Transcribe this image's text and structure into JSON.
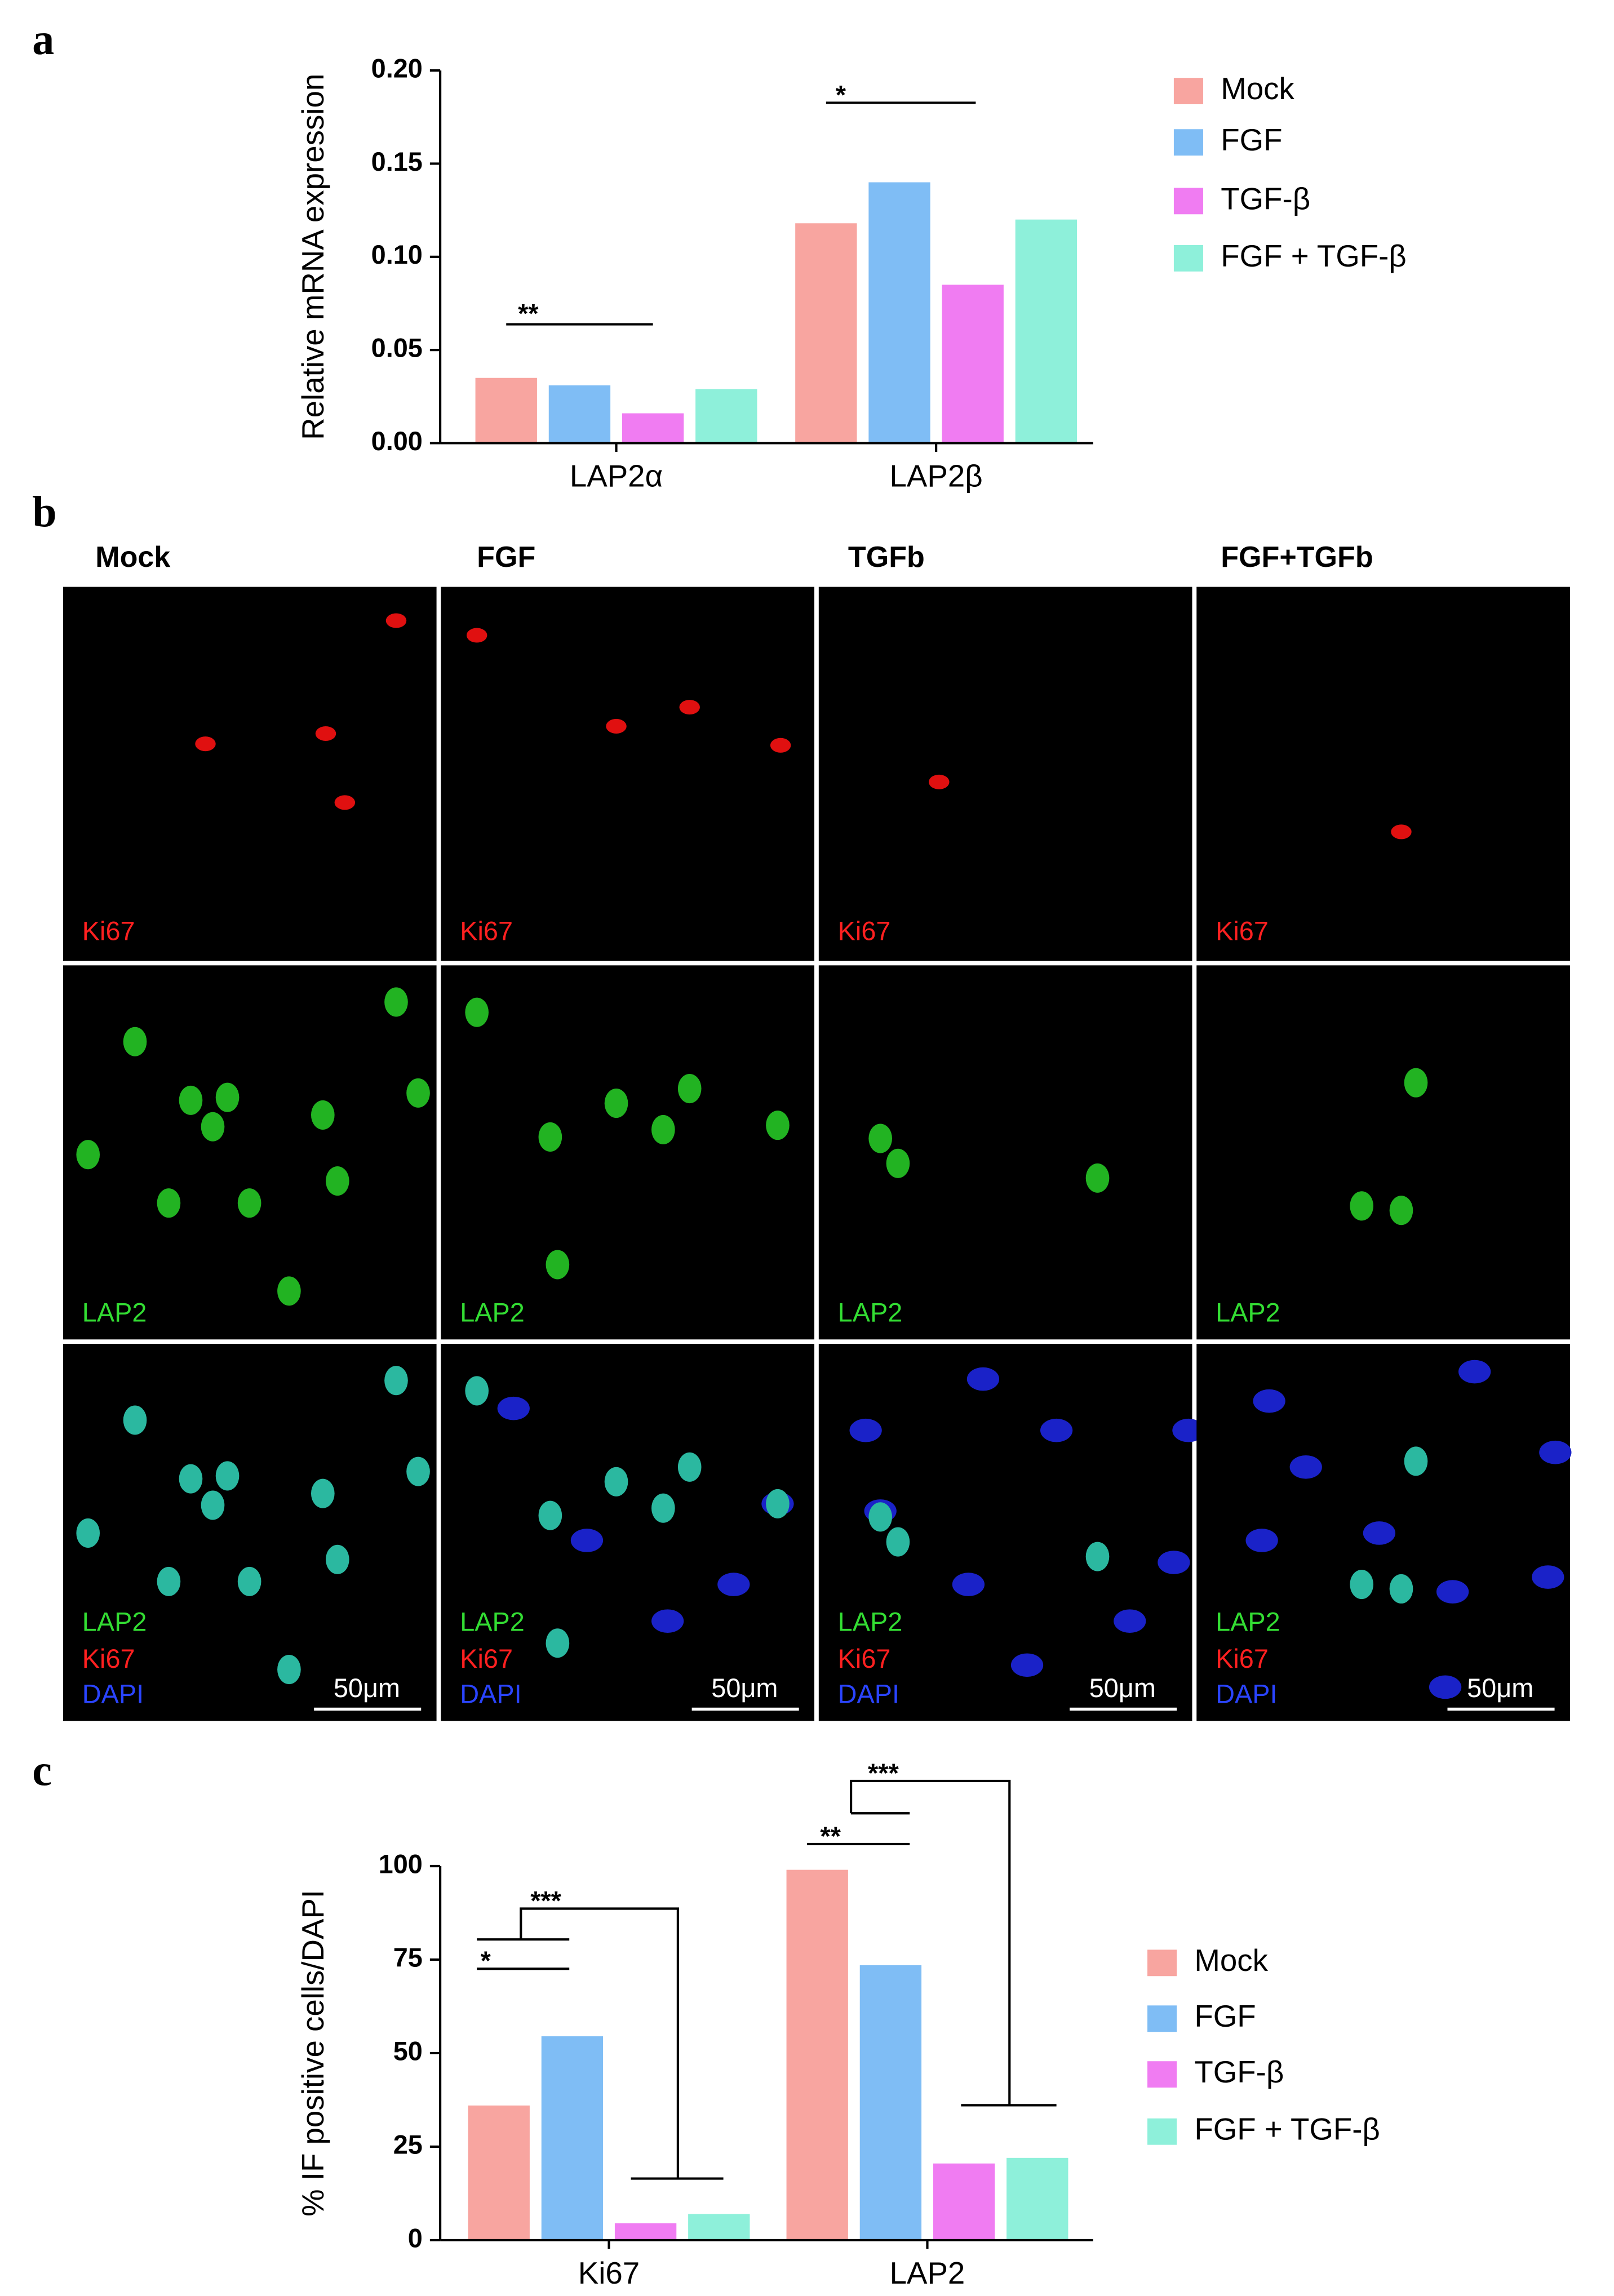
{
  "chart_data": [
    {
      "type": "bar",
      "ylabel": "Relative mRNA expression",
      "categories": [
        "LAP2α",
        "LAP2β"
      ],
      "series": [
        {
          "name": "Mock",
          "color": "#f8a5a0",
          "values": [
            0.035,
            0.118
          ]
        },
        {
          "name": "FGF",
          "color": "#7fbdf5",
          "values": [
            0.031,
            0.14
          ]
        },
        {
          "name": "TGF-β",
          "color": "#f07cf2",
          "values": [
            0.016,
            0.085
          ]
        },
        {
          "name": "FGF + TGF-β",
          "color": "#8ef0da",
          "values": [
            0.029,
            0.12
          ]
        }
      ],
      "ylim": [
        0,
        0.2
      ],
      "yticks": [
        {
          "value": 0,
          "label": "0.00"
        },
        {
          "value": 0.05,
          "label": "0.05"
        },
        {
          "value": 0.1,
          "label": "0.10"
        },
        {
          "value": 0.15,
          "label": "0.15"
        },
        {
          "value": 0.2,
          "label": "0.20"
        }
      ],
      "annotations": [
        "**",
        "*"
      ]
    },
    {
      "type": "bar",
      "ylabel": "% IF positive cells/DAPI",
      "categories": [
        "Ki67",
        "LAP2"
      ],
      "series": [
        {
          "name": "Mock",
          "color": "#f8a5a0",
          "values": [
            36,
            99
          ]
        },
        {
          "name": "FGF",
          "color": "#7fbdf5",
          "values": [
            54.5,
            73.5
          ]
        },
        {
          "name": "TGF-β",
          "color": "#f07cf2",
          "values": [
            4.5,
            20.5
          ]
        },
        {
          "name": "FGF + TGF-β",
          "color": "#8ef0da",
          "values": [
            7,
            22
          ]
        }
      ],
      "ylim": [
        0,
        100
      ],
      "yticks": [
        0,
        25,
        50,
        75,
        100
      ],
      "annotations": [
        "*",
        "***",
        "**",
        "***"
      ]
    }
  ],
  "figure": {
    "panel_labels": [
      "a",
      "b",
      "c"
    ],
    "columns": [
      "Mock",
      "FGF",
      "TGFb",
      "FGF+TGFb"
    ],
    "channels": [
      "Ki67",
      "LAP2",
      "DAPI"
    ],
    "scale_bar": "50μm"
  }
}
